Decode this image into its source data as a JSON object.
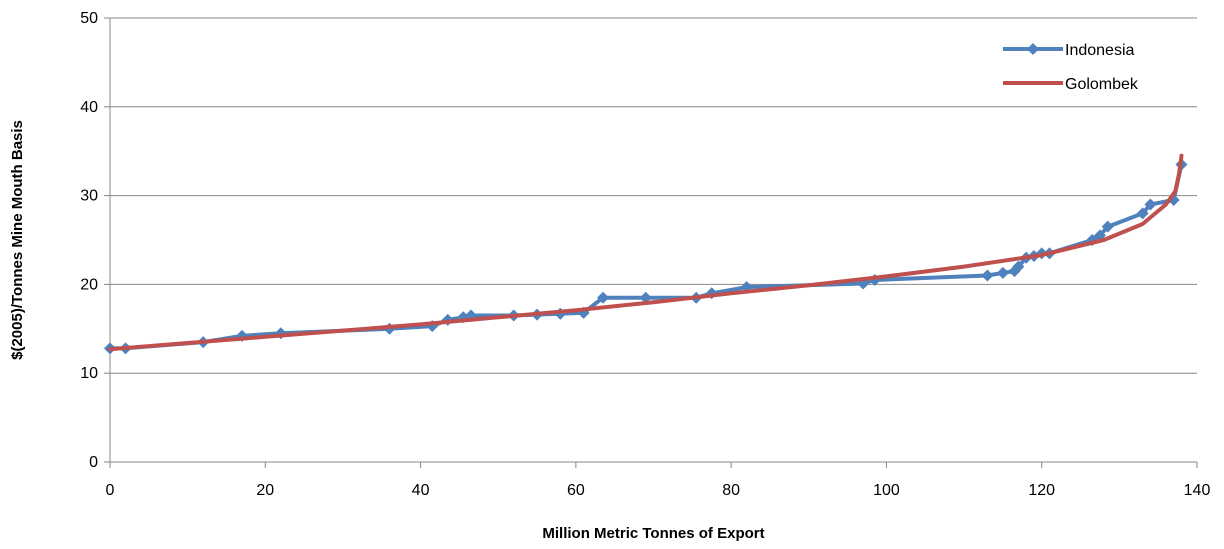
{
  "chart_data": {
    "type": "line",
    "title": "",
    "xlabel": "Million Metric Tonnes of Export",
    "ylabel": "$(2005)/Tonnes Mine Mouth Basis",
    "xlim": [
      0,
      140
    ],
    "ylim": [
      0,
      50
    ],
    "xticks": [
      0,
      20,
      40,
      60,
      80,
      100,
      120,
      140
    ],
    "yticks": [
      0,
      10,
      20,
      30,
      40,
      50
    ],
    "grid": "horizontal",
    "legend_position": "top-right",
    "series": [
      {
        "name": "Indonesia",
        "color": "#4f81bd",
        "marker": "diamond",
        "x": [
          0,
          2,
          12,
          17,
          22,
          36,
          41.5,
          43.5,
          45.5,
          46.5,
          52,
          55,
          58,
          61,
          63.5,
          69,
          75.5,
          77.5,
          82,
          97,
          98.5,
          113,
          115,
          116.5,
          117,
          118,
          119,
          120,
          121,
          126.5,
          127.5,
          128.5,
          133,
          134,
          137,
          138
        ],
        "y": [
          12.8,
          12.8,
          13.5,
          14.2,
          14.5,
          15,
          15.3,
          16,
          16.3,
          16.5,
          16.5,
          16.6,
          16.7,
          16.8,
          18.5,
          18.5,
          18.5,
          19,
          19.7,
          20.1,
          20.5,
          21,
          21.3,
          21.5,
          22,
          23,
          23.2,
          23.5,
          23.5,
          25,
          25.5,
          26.5,
          28,
          29,
          29.5,
          33.5
        ]
      },
      {
        "name": "Golombek",
        "color": "#c0504d",
        "marker": "none",
        "x": [
          0,
          10,
          20,
          30,
          40,
          50,
          60,
          70,
          80,
          90,
          100,
          110,
          120,
          128,
          133,
          136,
          137.2,
          137.7,
          138
        ],
        "y": [
          12.7,
          13.4,
          14.1,
          14.8,
          15.5,
          16.3,
          17.1,
          18.0,
          19.0,
          19.9,
          20.9,
          22.0,
          23.3,
          25.0,
          26.8,
          29.0,
          30.5,
          32.5,
          34.5
        ]
      }
    ]
  }
}
